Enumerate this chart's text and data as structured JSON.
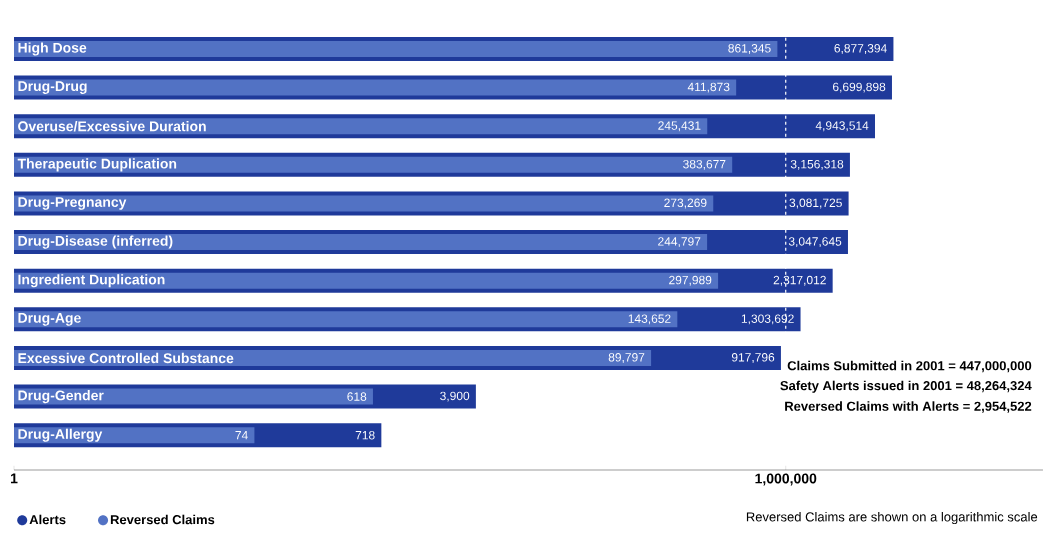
{
  "chart_data": {
    "type": "bar",
    "orientation": "horizontal",
    "log": "x",
    "categories": [
      "High Dose",
      "Drug-Drug",
      "Overuse/Excessive Duration",
      "Therapeutic Duplication",
      "Drug-Pregnancy",
      "Drug-Disease (inferred)",
      "Ingredient Duplication",
      "Drug-Age",
      "Excessive Controlled Substance",
      "Drug-Gender",
      "Drug-Allergy"
    ],
    "series": [
      {
        "name": "Alerts",
        "color": "#1f3a9a",
        "values": [
          6877394,
          6699898,
          4943514,
          3156318,
          3081725,
          3047645,
          2317012,
          1303692,
          917796,
          3900,
          718
        ],
        "value_labels": [
          "6,877,394",
          "6,699,898",
          "4,943,514",
          "3,156,318",
          "3,081,725",
          "3,047,645",
          "2,317,012",
          "1,303,692",
          "917,796",
          "3,900",
          "718"
        ]
      },
      {
        "name": "Reversed Claims",
        "color": "#5272c4",
        "values": [
          861345,
          411873,
          245431,
          383677,
          273269,
          244797,
          297989,
          143652,
          89797,
          618,
          74
        ],
        "value_labels": [
          "861,345",
          "411,873",
          "245,431",
          "383,677",
          "273,269",
          "244,797",
          "297,989",
          "143,652",
          "89,797",
          "618",
          "74"
        ]
      }
    ],
    "xlim": [
      1,
      100000000
    ],
    "xticks": [
      1,
      {
        "value": 1000000,
        "label": "1,000,000"
      }
    ],
    "legend": "bottom left",
    "grid": false,
    "ref_lines": [
      {
        "axis": "x",
        "value": 1000000,
        "color": "#ffffff",
        "line_style": "dashed"
      }
    ],
    "annotations": [
      "Claims Submitted in 2001 = 447,000,000",
      "Safety Alerts issued in 2001 = 48,264,324",
      "Reversed Claims with Alerts = 2,954,522",
      "Reversed Claims are shown on a logarithmic scale"
    ]
  }
}
